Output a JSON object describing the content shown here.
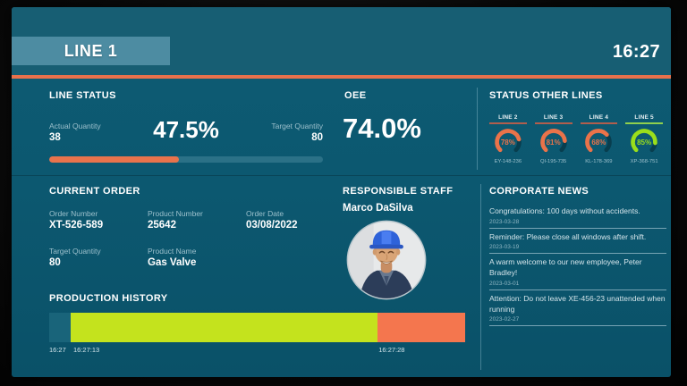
{
  "header": {
    "line_title": "LINE 1",
    "time": "16:27"
  },
  "line_status": {
    "title": "LINE STATUS",
    "actual_label": "Actual Quantity",
    "actual_value": "38",
    "percent": "47.5%",
    "target_label": "Target Quantity",
    "target_value": "80",
    "progress_pct": 47.5,
    "bar_color": "#e8734c",
    "track_color": "#2b7187"
  },
  "oee": {
    "title": "OEE",
    "value": "74.0%"
  },
  "other_lines": {
    "title": "STATUS OTHER LINES",
    "lines": [
      {
        "label": "LINE 2",
        "pct": 78,
        "pct_text": "78%",
        "code": "EY-148-236",
        "color": "#e9734a",
        "underline": "#b15e4d"
      },
      {
        "label": "LINE 3",
        "pct": 81,
        "pct_text": "81%",
        "code": "QI-195-735",
        "color": "#e9734a",
        "underline": "#b15e4d"
      },
      {
        "label": "LINE 4",
        "pct": 68,
        "pct_text": "68%",
        "code": "KL-178-369",
        "color": "#e9734a",
        "underline": "#b15e4d"
      },
      {
        "label": "LINE 5",
        "pct": 85,
        "pct_text": "85%",
        "code": "XP-368-751",
        "color": "#9ade1c",
        "underline": "#8fd04e"
      }
    ]
  },
  "current_order": {
    "title": "CURRENT ORDER",
    "fields": [
      {
        "label": "Order Number",
        "value": "XT-526-589"
      },
      {
        "label": "Product Number",
        "value": "25642"
      },
      {
        "label": "Order Date",
        "value": "03/08/2022"
      },
      {
        "label": "Target Quantity",
        "value": "80"
      },
      {
        "label": "Product Name",
        "value": "Gas Valve"
      }
    ]
  },
  "staff": {
    "title": "RESPONSIBLE STAFF",
    "name": "Marco DaSilva"
  },
  "production_history": {
    "title": "PRODUCTION HISTORY",
    "segments": [
      {
        "state": "idle",
        "color": "#19647a",
        "pct": 5.2
      },
      {
        "state": "running",
        "color": "#c4e31d",
        "pct": 73.8
      },
      {
        "state": "stopped",
        "color": "#f4764e",
        "pct": 21.0
      }
    ],
    "ticks": [
      {
        "label": "16:27",
        "pos": 0
      },
      {
        "label": "16:27:13",
        "pos": 5.8
      },
      {
        "label": "16:27:28",
        "pos": 79.2
      }
    ]
  },
  "news": {
    "title": "CORPORATE NEWS",
    "items": [
      {
        "text": "Congratulations: 100 days without accidents.",
        "date": "2023-03-28"
      },
      {
        "text": "Reminder: Please close all windows after shift.",
        "date": "2023-03-19"
      },
      {
        "text": "A warm welcome to our new employee, Peter Bradley!",
        "date": "2023-03-01"
      },
      {
        "text": "Attention: Do not leave XE-456-23 unattended when running",
        "date": "2023-02-27"
      }
    ]
  }
}
